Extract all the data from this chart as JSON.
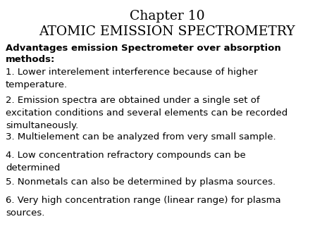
{
  "title_line1": "Chapter 10",
  "title_line2": "ATOMIC EMISSION SPECTROMETRY",
  "bg_color": "#ffffff",
  "text_color": "#000000",
  "bold_heading_line1": "Advantages emission Spectrometer over absorption",
  "bold_heading_line2": "methods:",
  "items": [
    "1. Lower interelement interference because of higher\ntemperature.",
    "2. Emission spectra are obtained under a single set of\nexcitation conditions and several elements can be recorded\nsimultaneously.",
    "3. Multielement can be analyzed from very small sample.",
    "4. Low concentration refractory compounds can be\ndetermined",
    "5. Nonmetals can also be determined by plasma sources.",
    "6. Very high concentration range (linear range) for plasma\nsources."
  ],
  "title_fontsize": 13.5,
  "heading_fontsize": 9.5,
  "body_fontsize": 9.5,
  "fig_width": 4.74,
  "fig_height": 3.55,
  "dpi": 100
}
